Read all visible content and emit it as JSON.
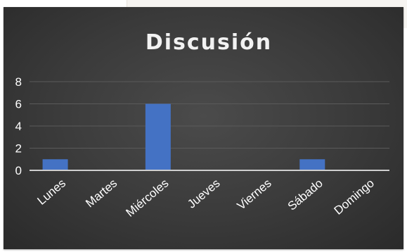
{
  "chart_data": {
    "type": "bar",
    "title": "Discusión",
    "categories": [
      "Lunes",
      "Martes",
      "Miércoles",
      "Jueves",
      "Viernes",
      "Sábado",
      "Domingo"
    ],
    "values": [
      1,
      0,
      6,
      0,
      0,
      1,
      0
    ],
    "yticks": [
      0,
      2,
      4,
      6,
      8
    ],
    "ylim": [
      0,
      8
    ],
    "grid": true,
    "legend": "none",
    "colors": {
      "background": "#3a3a3a",
      "bar": "#4472c4",
      "gridline": "#5a5a5a",
      "axis": "#cfcfcf",
      "text": "#ffffff"
    }
  }
}
